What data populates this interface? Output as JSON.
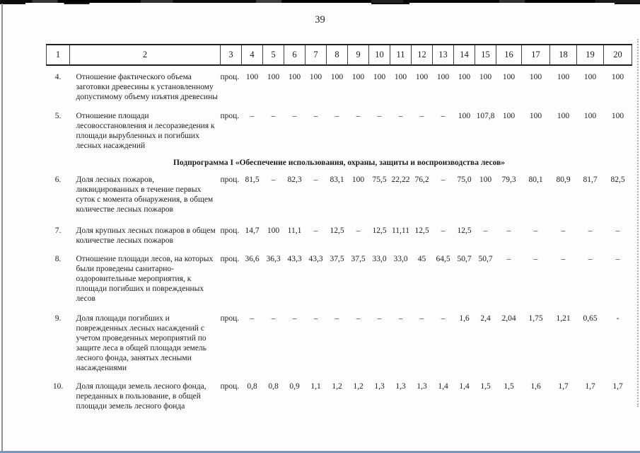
{
  "page": {
    "number": "39"
  },
  "table": {
    "header_cols": [
      "1",
      "2",
      "3",
      "4",
      "5",
      "6",
      "7",
      "8",
      "9",
      "10",
      "11",
      "12",
      "13",
      "14",
      "15",
      "16",
      "17",
      "18",
      "19",
      "20"
    ],
    "rows": [
      {
        "type": "row",
        "num": "4.",
        "name": "Отношение фактического объема заготовки древесины к установленному допустимому объему изъятия древесины",
        "unit": "проц.",
        "values": [
          "100",
          "100",
          "100",
          "100",
          "100",
          "100",
          "100",
          "100",
          "100",
          "100",
          "100",
          "100",
          "100",
          "100",
          "100",
          "100",
          "100"
        ]
      },
      {
        "type": "row",
        "num": "5.",
        "name": "Отношение площади лесовосстановления и лесоразведения к площади вырубленных и погибших лесных насаждений",
        "unit": "проц.",
        "values": [
          "–",
          "–",
          "–",
          "–",
          "–",
          "–",
          "–",
          "–",
          "–",
          "–",
          "100",
          "107,8",
          "100",
          "100",
          "100",
          "100",
          "100"
        ]
      },
      {
        "type": "heading",
        "text": "Подпрограмма I «Обеспечение использования, охраны, защиты и воспроизводства лесов»"
      },
      {
        "type": "row",
        "num": "6.",
        "name": "Доля лесных пожаров, ликвидированных в течение первых суток с момента обнаружения, в общем количестве лесных пожаров",
        "unit": "проц.",
        "values": [
          "81,5",
          "–",
          "82,3",
          "–",
          "83,1",
          "100",
          "75,5",
          "22,22",
          "76,2",
          "–",
          "75,0",
          "100",
          "79,3",
          "80,1",
          "80,9",
          "81,7",
          "82,5"
        ]
      },
      {
        "type": "row",
        "num": "7.",
        "name": "Доля крупных лесных пожаров в общем количестве лесных пожаров",
        "unit": "проц.",
        "values": [
          "14,7",
          "100",
          "11,1",
          "–",
          "12,5",
          "–",
          "12,5",
          "11,11",
          "12,5",
          "–",
          "12,5",
          "–",
          "–",
          "–",
          "–",
          "–",
          "–"
        ]
      },
      {
        "type": "row",
        "num": "8.",
        "name": "Отношение площади лесов, на которых были проведены санитарно-оздоровительные мероприятия, к площади погибших и поврежденных лесов",
        "unit": "проц.",
        "values": [
          "36,6",
          "36,3",
          "43,3",
          "43,3",
          "37,5",
          "37,5",
          "33,0",
          "33,0",
          "45",
          "64,5",
          "50,7",
          "50,7",
          "–",
          "–",
          "–",
          "–",
          "–"
        ]
      },
      {
        "type": "row",
        "num": "9.",
        "name": "Доля площади погибших и поврежденных лесных насаждений с учетом проведенных мероприятий по защите леса в общей площади земель лесного фонда, занятых лесными насаждениями",
        "unit": "проц.",
        "values": [
          "–",
          "–",
          "–",
          "–",
          "–",
          "–",
          "–",
          "–",
          "–",
          "–",
          "1,6",
          "2,4",
          "2,04",
          "1,75",
          "1,21",
          "0,65",
          "-"
        ]
      },
      {
        "type": "row",
        "num": "10.",
        "name": "Доля площади земель лесного фонда, переданных в пользование, в общей площади земель лесного фонда",
        "unit": "проц.",
        "values": [
          "0,8",
          "0,8",
          "0,9",
          "1,1",
          "1,2",
          "1,2",
          "1,3",
          "1,3",
          "1,3",
          "1,4",
          "1,4",
          "1,5",
          "1,5",
          "1,6",
          "1,7",
          "1,7",
          "1,7"
        ]
      }
    ]
  }
}
